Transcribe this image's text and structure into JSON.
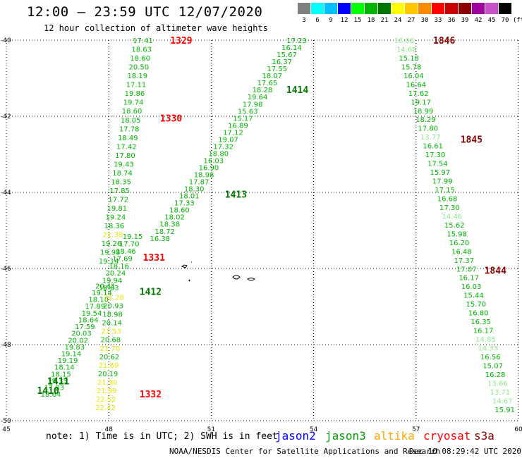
{
  "header": {
    "title": "12:00 — 23:59 UTC 12/07/2020",
    "subtitle": "12 hour collection of altimeter wave heights"
  },
  "legend": {
    "unit": "(ft)",
    "bins": [
      {
        "label": "3",
        "color": "#808080"
      },
      {
        "label": "6",
        "color": "#00ffff"
      },
      {
        "label": "9",
        "color": "#00bfff"
      },
      {
        "label": "12",
        "color": "#0000ff"
      },
      {
        "label": "15",
        "color": "#00ff00"
      },
      {
        "label": "18",
        "color": "#00b400"
      },
      {
        "label": "21",
        "color": "#007800"
      },
      {
        "label": "24",
        "color": "#ffff00"
      },
      {
        "label": "27",
        "color": "#ffc800"
      },
      {
        "label": "30",
        "color": "#ff8c00"
      },
      {
        "label": "33",
        "color": "#ff0000"
      },
      {
        "label": "36",
        "color": "#c80000"
      },
      {
        "label": "39",
        "color": "#8b0000"
      },
      {
        "label": "42",
        "color": "#a000a0"
      },
      {
        "label": "45",
        "color": "#c850c8"
      },
      {
        "label": "70",
        "color": "#000000"
      }
    ]
  },
  "map": {
    "lon_min": 45,
    "lon_max": 60,
    "lat_min": -50,
    "lat_max": -40,
    "x_ticks": [
      45,
      48,
      51,
      54,
      57,
      60
    ],
    "x_tick_labels": [
      "45",
      "48",
      "51",
      "54",
      "57",
      "60"
    ],
    "y_ticks": [
      -40,
      -42,
      -44,
      -46,
      -48,
      -50
    ],
    "y_tick_labels": [
      "-40",
      "-42",
      "-44",
      "-46",
      "-48",
      "-50"
    ],
    "colors": {
      "g1": "#00b400",
      "g2": "#007800",
      "g3": "#8ce68c",
      "yel": "#e6e600",
      "red": "#ff0000",
      "dred": "#8b0000"
    },
    "pass_labels": [
      {
        "text": "1329",
        "lon": 49.8,
        "lat": -40.0,
        "color": "red"
      },
      {
        "text": "1330",
        "lon": 49.5,
        "lat": -42.05,
        "color": "red"
      },
      {
        "text": "1331",
        "lon": 49.0,
        "lat": -45.7,
        "color": "red"
      },
      {
        "text": "1332",
        "lon": 48.9,
        "lat": -49.3,
        "color": "red"
      },
      {
        "text": "1414",
        "lon": 53.2,
        "lat": -41.3,
        "color": "g2"
      },
      {
        "text": "1413",
        "lon": 51.4,
        "lat": -44.05,
        "color": "g2"
      },
      {
        "text": "1412",
        "lon": 48.9,
        "lat": -46.6,
        "color": "g2"
      },
      {
        "text": "1411",
        "lon": 46.2,
        "lat": -48.95,
        "color": "g2"
      },
      {
        "text": "1410",
        "lon": 45.9,
        "lat": -49.2,
        "color": "g2"
      },
      {
        "text": "1846",
        "lon": 57.5,
        "lat": -40.0,
        "color": "dred"
      },
      {
        "text": "1845",
        "lon": 58.3,
        "lat": -42.6,
        "color": "dred"
      },
      {
        "text": "1844",
        "lon": 59.0,
        "lat": -46.05,
        "color": "dred"
      }
    ],
    "tracks": [
      {
        "name": "A",
        "lon0": 49.0,
        "lat0": -40.0,
        "lon1": 48.0,
        "lat1": -45.8,
        "values": [
          [
            "17.41",
            "g1"
          ],
          [
            "18.63",
            "g1"
          ],
          [
            "18.60",
            "g1"
          ],
          [
            "20.50",
            "g1"
          ],
          [
            "18.19",
            "g1"
          ],
          [
            "17.11",
            "g1"
          ],
          [
            "19.86",
            "g1"
          ],
          [
            "19.74",
            "g1"
          ],
          [
            "18.60",
            "g1"
          ],
          [
            "18.05",
            "g1"
          ],
          [
            "17.78",
            "g1"
          ],
          [
            "18.49",
            "g1"
          ],
          [
            "17.42",
            "g1"
          ],
          [
            "17.80",
            "g1"
          ],
          [
            "19.43",
            "g1"
          ],
          [
            "18.74",
            "g1"
          ],
          [
            "18.35",
            "g1"
          ],
          [
            "17.85",
            "g1"
          ],
          [
            "17.72",
            "g1"
          ],
          [
            "19.81",
            "g1"
          ],
          [
            "19.24",
            "g1"
          ],
          [
            "18.36",
            "g1"
          ],
          [
            "21.38",
            "yel"
          ],
          [
            "19.26",
            "g1"
          ],
          [
            "19.98",
            "g1"
          ],
          [
            "19.14",
            "g1"
          ]
        ]
      },
      {
        "name": "B",
        "lon0": 48.7,
        "lat0": -45.15,
        "lon1": 48.0,
        "lat1": -46.5,
        "values": [
          [
            "19.15",
            "g1"
          ],
          [
            "17.70",
            "g1"
          ],
          [
            "18.46",
            "g1"
          ],
          [
            "17.69",
            "g1"
          ],
          [
            "18.16",
            "g1"
          ],
          [
            "20.24",
            "g1"
          ],
          [
            "19.94",
            "g1"
          ],
          [
            "18.63",
            "g1"
          ]
        ]
      },
      {
        "name": "C",
        "lon0": 47.9,
        "lat0": -46.45,
        "lon1": 46.3,
        "lat1": -49.3,
        "values": [
          [
            "20.41",
            "g1"
          ],
          [
            "19.14",
            "g1"
          ],
          [
            "18.10",
            "g1"
          ],
          [
            "17.89",
            "g1"
          ],
          [
            "19.54",
            "g1"
          ],
          [
            "18.64",
            "g1"
          ],
          [
            "17.59",
            "g1"
          ],
          [
            "20.03",
            "g1"
          ],
          [
            "20.02",
            "g1"
          ],
          [
            "19.83",
            "g1"
          ],
          [
            "19.14",
            "g1"
          ],
          [
            "19.19",
            "g1"
          ],
          [
            "18.14",
            "g1"
          ],
          [
            "18.15",
            "g1"
          ],
          [
            "19.35",
            "g1"
          ],
          [
            "17.83",
            "g1"
          ],
          [
            "18.64",
            "g1"
          ]
        ]
      },
      {
        "name": "D",
        "lon0": 48.15,
        "lat0": -46.75,
        "lon1": 47.9,
        "lat1": -49.65,
        "values": [
          [
            "21.28",
            "yel"
          ],
          [
            "20.93",
            "g1"
          ],
          [
            "18.98",
            "g1"
          ],
          [
            "20.14",
            "g1"
          ],
          [
            "21.53",
            "yel"
          ],
          [
            "20.68",
            "g1"
          ],
          [
            "21.70",
            "yel"
          ],
          [
            "20.62",
            "g1"
          ],
          [
            "21.69",
            "yel"
          ],
          [
            "20.19",
            "g1"
          ],
          [
            "21.90",
            "yel"
          ],
          [
            "21.99",
            "yel"
          ],
          [
            "22.52",
            "yel"
          ],
          [
            "22.43",
            "yel"
          ]
        ]
      },
      {
        "name": "E",
        "lon0": 53.5,
        "lat0": -40.0,
        "lon1": 49.5,
        "lat1": -45.2,
        "values": [
          [
            "17.23",
            "g1"
          ],
          [
            "16.14",
            "g1"
          ],
          [
            "15.67",
            "g1"
          ],
          [
            "16.37",
            "g1"
          ],
          [
            "17.55",
            "g1"
          ],
          [
            "18.07",
            "g1"
          ],
          [
            "17.65",
            "g1"
          ],
          [
            "18.28",
            "g1"
          ],
          [
            "19.64",
            "g1"
          ],
          [
            "17.98",
            "g1"
          ],
          [
            "15.63",
            "g1"
          ],
          [
            "15.17",
            "g1"
          ],
          [
            "16.89",
            "g1"
          ],
          [
            "17.12",
            "g1"
          ],
          [
            "19.07",
            "g1"
          ],
          [
            "17.32",
            "g1"
          ],
          [
            "18.80",
            "g1"
          ],
          [
            "16.03",
            "g1"
          ],
          [
            "16.90",
            "g1"
          ],
          [
            "18.98",
            "g1"
          ],
          [
            "17.87",
            "g1"
          ],
          [
            "18.30",
            "g1"
          ],
          [
            "18.01",
            "g1"
          ],
          [
            "17.33",
            "g1"
          ],
          [
            "18.60",
            "g1"
          ],
          [
            "18.02",
            "g1"
          ],
          [
            "18.38",
            "g1"
          ],
          [
            "18.72",
            "g1"
          ],
          [
            "16.38",
            "g1"
          ]
        ]
      },
      {
        "name": "F",
        "lon0": 56.65,
        "lat0": -40.0,
        "lon1": 59.6,
        "lat1": -49.7,
        "values": [
          [
            "16.06",
            "g3"
          ],
          [
            "14.68",
            "g3"
          ],
          [
            "15.18",
            "g1"
          ],
          [
            "15.78",
            "g1"
          ],
          [
            "16.04",
            "g1"
          ],
          [
            "16.64",
            "g1"
          ],
          [
            "17.62",
            "g1"
          ],
          [
            "19.17",
            "g1"
          ],
          [
            "18.99",
            "g1"
          ],
          [
            "18.29",
            "g1"
          ],
          [
            "17.80",
            "g1"
          ],
          [
            "13.77",
            "g3"
          ],
          [
            "16.61",
            "g1"
          ],
          [
            "17.30",
            "g1"
          ],
          [
            "17.54",
            "g1"
          ],
          [
            "15.97",
            "g1"
          ],
          [
            "17.99",
            "g1"
          ],
          [
            "17.15",
            "g1"
          ],
          [
            "16.68",
            "g1"
          ],
          [
            "17.30",
            "g1"
          ],
          [
            "14.46",
            "g3"
          ],
          [
            "15.62",
            "g1"
          ],
          [
            "15.98",
            "g1"
          ],
          [
            "16.20",
            "g1"
          ],
          [
            "16.48",
            "g1"
          ],
          [
            "17.37",
            "g1"
          ],
          [
            "17.07",
            "g1"
          ],
          [
            "16.17",
            "g1"
          ],
          [
            "16.03",
            "g1"
          ],
          [
            "15.44",
            "g1"
          ],
          [
            "15.70",
            "g1"
          ],
          [
            "16.80",
            "g1"
          ],
          [
            "16.35",
            "g1"
          ],
          [
            "16.17",
            "g1"
          ],
          [
            "14.85",
            "g3"
          ],
          [
            "14.33",
            "g3"
          ],
          [
            "16.56",
            "g1"
          ],
          [
            "15.07",
            "g1"
          ],
          [
            "16.28",
            "g1"
          ],
          [
            "13.66",
            "g3"
          ],
          [
            "13.71",
            "g3"
          ],
          [
            "14.67",
            "g3"
          ],
          [
            "15.91",
            "g1"
          ]
        ]
      }
    ]
  },
  "footer": {
    "note": "note:  1) Time is in UTC;  2) SWH is in feet",
    "satellites": [
      {
        "name": "jason2",
        "color": "#0000ff"
      },
      {
        "name": "jason3",
        "color": "#00a000"
      },
      {
        "name": "altika",
        "color": "#ffa500"
      },
      {
        "name": "cryosat",
        "color": "#ff0000"
      },
      {
        "name": "s3a",
        "color": "#8b0000"
      }
    ],
    "credit": "NOAA/NESDIS Center for Satellite Applications and Research",
    "timestamp": "Dec 10 08:29:42 UTC 2020"
  }
}
